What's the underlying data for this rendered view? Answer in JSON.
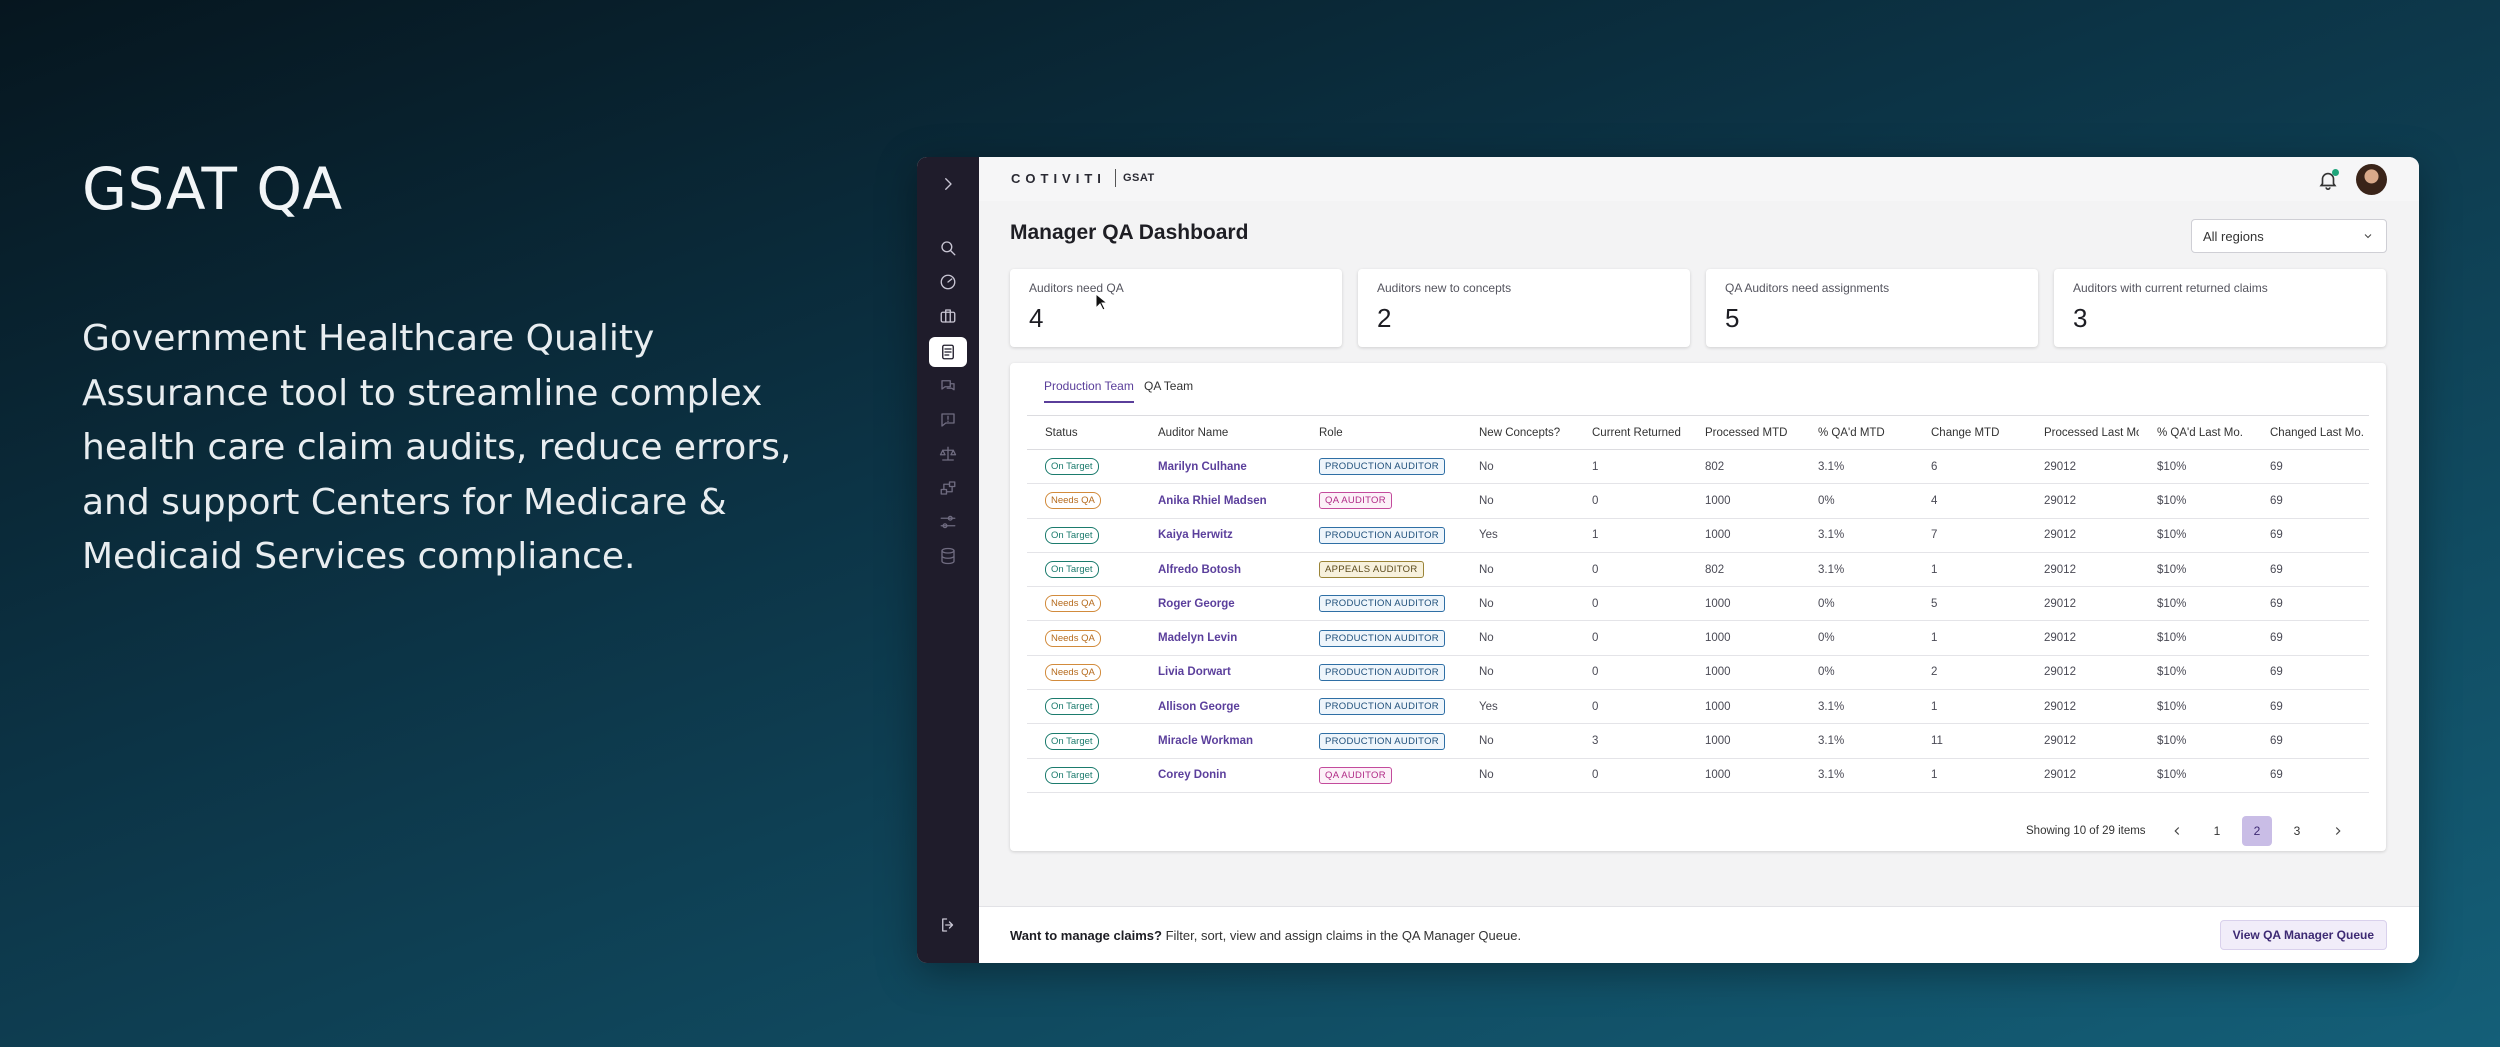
{
  "hero": {
    "title": "GSAT QA",
    "description": "Government Healthcare Quality Assurance tool to streamline complex health care claim audits, reduce errors, and support Centers for Medicare & Medicaid Services compliance."
  },
  "topbar": {
    "brand": "COTIVITI",
    "product": "GSAT"
  },
  "sidebar": {
    "icons": [
      "chevron-right-icon",
      "search-icon",
      "speedometer-icon",
      "briefcase-icon",
      "clipboard-icon",
      "chat-icon",
      "alert-icon",
      "balance-icon",
      "flow-icon",
      "sliders-icon",
      "database-icon",
      "logout-icon"
    ]
  },
  "main": {
    "title": "Manager QA Dashboard",
    "region_select": "All regions",
    "stats": [
      {
        "label": "Auditors need QA",
        "value": "4"
      },
      {
        "label": "Auditors new to concepts",
        "value": "2"
      },
      {
        "label": "QA Auditors need assignments",
        "value": "5"
      },
      {
        "label": "Auditors with current returned claims",
        "value": "3"
      }
    ],
    "tabs": [
      {
        "label": "Production Team",
        "active": true
      },
      {
        "label": "QA Team",
        "active": false
      }
    ],
    "table": {
      "headers": [
        "Status",
        "Auditor Name",
        "Role",
        "New Concepts?",
        "Current Returned",
        "Processed MTD",
        "% QA'd MTD",
        "Change MTD",
        "Processed Last Mo.",
        "% QA'd Last Mo.",
        "Changed Last Mo."
      ],
      "rows": [
        [
          "On Target",
          "Marilyn Culhane",
          "PRODUCTION AUDITOR",
          "No",
          "1",
          "802",
          "3.1%",
          "6",
          "29012",
          "$10%",
          "69"
        ],
        [
          "Needs QA",
          "Anika Rhiel Madsen",
          "QA AUDITOR",
          "No",
          "0",
          "1000",
          "0%",
          "4",
          "29012",
          "$10%",
          "69"
        ],
        [
          "On Target",
          "Kaiya Herwitz",
          "PRODUCTION AUDITOR",
          "Yes",
          "1",
          "1000",
          "3.1%",
          "7",
          "29012",
          "$10%",
          "69"
        ],
        [
          "On Target",
          "Alfredo Botosh",
          "APPEALS AUDITOR",
          "No",
          "0",
          "802",
          "3.1%",
          "1",
          "29012",
          "$10%",
          "69"
        ],
        [
          "Needs QA",
          "Roger George",
          "PRODUCTION AUDITOR",
          "No",
          "0",
          "1000",
          "0%",
          "5",
          "29012",
          "$10%",
          "69"
        ],
        [
          "Needs QA",
          "Madelyn Levin",
          "PRODUCTION AUDITOR",
          "No",
          "0",
          "1000",
          "0%",
          "1",
          "29012",
          "$10%",
          "69"
        ],
        [
          "Needs QA",
          "Livia Dorwart",
          "PRODUCTION AUDITOR",
          "No",
          "0",
          "1000",
          "0%",
          "2",
          "29012",
          "$10%",
          "69"
        ],
        [
          "On Target",
          "Allison George",
          "PRODUCTION AUDITOR",
          "Yes",
          "0",
          "1000",
          "3.1%",
          "1",
          "29012",
          "$10%",
          "69"
        ],
        [
          "On Target",
          "Miracle Workman",
          "PRODUCTION AUDITOR",
          "No",
          "3",
          "1000",
          "3.1%",
          "11",
          "29012",
          "$10%",
          "69"
        ],
        [
          "On Target",
          "Corey Donin",
          "QA AUDITOR",
          "No",
          "0",
          "1000",
          "3.1%",
          "1",
          "29012",
          "$10%",
          "69"
        ]
      ]
    },
    "pagination": {
      "summary": "Showing 10 of 29 items",
      "pages": [
        "1",
        "2",
        "3"
      ],
      "current": "2"
    }
  },
  "footer": {
    "lead": "Want to manage claims?",
    "text": "Filter, sort, view and assign claims in the QA Manager Queue.",
    "button": "View QA Manager Queue"
  },
  "colors": {
    "accent": "#5a3e9a",
    "sidebar": "#1f1c2b",
    "status_ok": "#1b7b6d",
    "status_needs_qa": "#b56a1c"
  }
}
